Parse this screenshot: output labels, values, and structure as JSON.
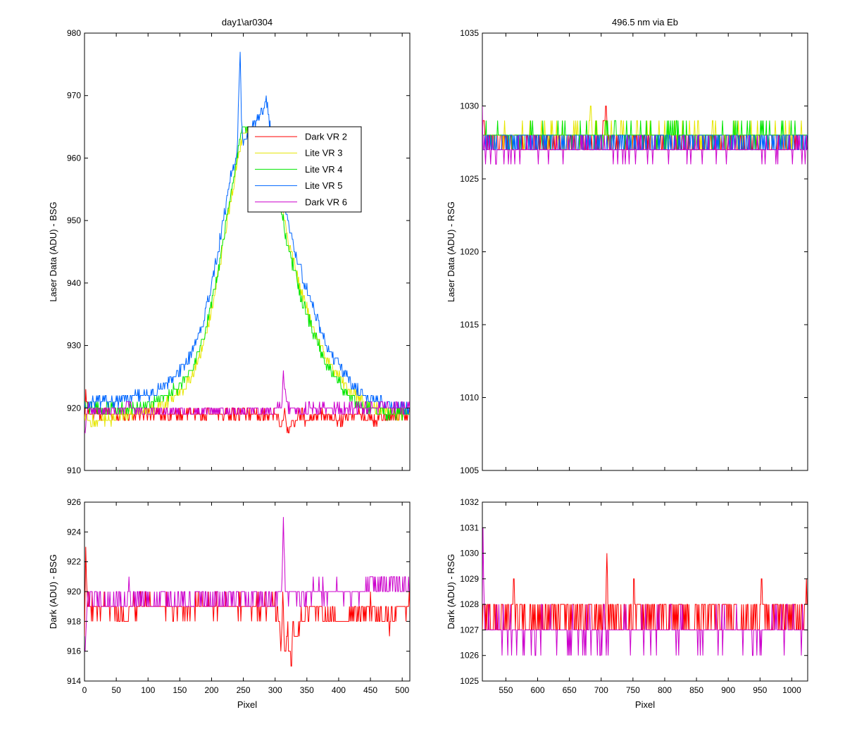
{
  "chart_data": [
    {
      "id": "top-left",
      "type": "line",
      "title": "day1\\ar0304",
      "xlabel": "",
      "ylabel": "Laser Data (ADU) - BSG",
      "xlim": [
        0,
        512
      ],
      "ylim": [
        910,
        980
      ],
      "xticks": [
        0,
        50,
        100,
        150,
        200,
        250,
        300,
        350,
        400,
        450,
        500
      ],
      "yticks": [
        910,
        920,
        930,
        940,
        950,
        960,
        970,
        980
      ],
      "show_xticklabels": false,
      "legend": {
        "position": "upper-center",
        "entries": [
          "Dark VR 2",
          "Lite VR 3",
          "Lite VR 4",
          "Lite VR 5",
          "Dark VR 6"
        ]
      },
      "series": [
        {
          "name": "Dark VR 2",
          "color": "#ff0000",
          "x": [
            0,
            2,
            5,
            10,
            20,
            40,
            60,
            80,
            100,
            150,
            200,
            250,
            300,
            305,
            310,
            315,
            320,
            325,
            330,
            340,
            350,
            370,
            400,
            430,
            460,
            490,
            512
          ],
          "y": [
            917,
            922,
            920,
            919,
            919,
            919,
            919,
            919,
            919,
            919,
            919,
            919,
            919,
            918,
            917,
            920,
            916,
            917,
            918,
            919,
            918,
            919,
            918,
            919,
            918,
            919,
            919
          ]
        },
        {
          "name": "Lite VR 3",
          "color": "#e6e600",
          "x": [
            0,
            10,
            30,
            50,
            70,
            90,
            110,
            130,
            150,
            170,
            190,
            210,
            230,
            245,
            250,
            290,
            300,
            320,
            340,
            360,
            380,
            400,
            420,
            440,
            460,
            480,
            500,
            512
          ],
          "y": [
            919,
            918,
            918,
            918.5,
            919,
            919.5,
            920,
            921,
            922.5,
            925,
            931,
            941,
            953,
            962,
            964,
            963,
            958,
            947,
            939,
            933,
            928,
            925,
            922.5,
            921,
            920,
            919.5,
            919,
            919
          ]
        },
        {
          "name": "Lite VR 4",
          "color": "#00e600",
          "x": [
            0,
            10,
            30,
            50,
            70,
            90,
            110,
            130,
            150,
            170,
            190,
            210,
            230,
            245,
            250,
            290,
            300,
            320,
            340,
            360,
            380,
            400,
            420,
            440,
            460,
            480,
            500,
            512
          ],
          "y": [
            921,
            920,
            920,
            920,
            920,
            920.5,
            921,
            922,
            923.5,
            926,
            932,
            942,
            954,
            963,
            965,
            964,
            957,
            946,
            938,
            932,
            927,
            924,
            921.5,
            920,
            919.5,
            919,
            919,
            919
          ]
        },
        {
          "name": "Lite VR 5",
          "color": "#0066ff",
          "x": [
            0,
            10,
            30,
            50,
            70,
            90,
            110,
            130,
            150,
            170,
            190,
            210,
            230,
            240,
            245,
            247,
            250,
            288,
            290,
            300,
            320,
            340,
            360,
            380,
            400,
            420,
            440,
            460,
            480,
            500,
            512
          ],
          "y": [
            920,
            921,
            921,
            921,
            921.5,
            922,
            922.5,
            924,
            926,
            929,
            935,
            945,
            957,
            961,
            977,
            966,
            962,
            969,
            966,
            960,
            950,
            942,
            936,
            930,
            927,
            924,
            922,
            921,
            920.5,
            920,
            920
          ]
        },
        {
          "name": "Dark VR 6",
          "color": "#cc00cc",
          "x": [
            0,
            2,
            5,
            10,
            20,
            40,
            60,
            70,
            80,
            100,
            150,
            200,
            250,
            300,
            310,
            313,
            320,
            340,
            360,
            400,
            450,
            470,
            500,
            512
          ],
          "y": [
            916,
            917,
            920,
            919.5,
            919.5,
            919.5,
            919.5,
            921,
            919.5,
            919.5,
            919.5,
            919.5,
            919.5,
            919.5,
            920,
            925,
            920,
            919.5,
            920,
            920,
            920,
            920.5,
            920,
            920
          ]
        }
      ]
    },
    {
      "id": "top-right",
      "type": "line",
      "title": "496.5 nm via Eb",
      "xlabel": "",
      "ylabel": "Laser Data (ADU) - RSG",
      "xlim": [
        513,
        1025
      ],
      "ylim": [
        1005,
        1035
      ],
      "xticks": [
        550,
        600,
        650,
        700,
        750,
        800,
        850,
        900,
        950,
        1000
      ],
      "yticks": [
        1005,
        1010,
        1015,
        1020,
        1025,
        1030,
        1035
      ],
      "show_xticklabels": false,
      "series": [
        {
          "name": "Dark VR 2",
          "color": "#ff0000",
          "x": [
            513,
            515,
            520,
            600,
            700,
            708,
            710,
            800,
            900,
            1000,
            1025
          ],
          "y": [
            1028,
            1029,
            1027.5,
            1027.5,
            1027.5,
            1030,
            1027.5,
            1027.5,
            1027.5,
            1027.5,
            1027.5
          ]
        },
        {
          "name": "Lite VR 3",
          "color": "#e6e600",
          "x": [
            513,
            600,
            680,
            683,
            686,
            800,
            900,
            1000,
            1025
          ],
          "y": [
            1028,
            1028,
            1028,
            1030,
            1028,
            1028,
            1028,
            1028,
            1028
          ]
        },
        {
          "name": "Lite VR 4",
          "color": "#00e600",
          "x": [
            513,
            600,
            700,
            800,
            900,
            1000,
            1025
          ],
          "y": [
            1028,
            1028,
            1028,
            1028,
            1028,
            1028,
            1028
          ]
        },
        {
          "name": "Lite VR 5",
          "color": "#0066ff",
          "x": [
            513,
            600,
            700,
            800,
            900,
            1000,
            1025
          ],
          "y": [
            1027.5,
            1027.5,
            1027.5,
            1027.5,
            1027.5,
            1027.5,
            1027.5
          ]
        },
        {
          "name": "Dark VR 6",
          "color": "#cc00cc",
          "x": [
            513,
            514,
            520,
            600,
            700,
            800,
            900,
            1000,
            1025
          ],
          "y": [
            1030.5,
            1027,
            1027,
            1027,
            1027,
            1027,
            1027,
            1027,
            1027
          ]
        }
      ]
    },
    {
      "id": "bottom-left",
      "type": "line",
      "title": "",
      "xlabel": "Pixel",
      "ylabel": "Dark (ADU) - BSG",
      "xlim": [
        0,
        512
      ],
      "ylim": [
        914,
        926
      ],
      "xticks": [
        0,
        50,
        100,
        150,
        200,
        250,
        300,
        350,
        400,
        450,
        500
      ],
      "yticks": [
        914,
        916,
        918,
        920,
        922,
        924,
        926
      ],
      "show_xticklabels": true,
      "series": [
        {
          "name": "Dark VR 2",
          "color": "#ff0000",
          "x": [
            0,
            2,
            4,
            8,
            15,
            40,
            69,
            70,
            71,
            100,
            150,
            200,
            250,
            300,
            305,
            310,
            312,
            315,
            320,
            325,
            328,
            330,
            340,
            360,
            400,
            450,
            480,
            500,
            512
          ],
          "y": [
            917,
            923,
            920,
            919,
            919,
            919,
            918,
            919,
            919,
            919,
            919,
            919,
            919,
            919,
            918,
            916,
            920,
            916,
            917,
            915,
            918,
            917,
            918,
            919,
            918,
            919,
            918,
            919,
            919
          ]
        },
        {
          "name": "Dark VR 6",
          "color": "#cc00cc",
          "x": [
            0,
            2,
            5,
            10,
            50,
            69,
            70,
            71,
            100,
            150,
            200,
            250,
            300,
            310,
            313,
            316,
            320,
            340,
            360,
            400,
            440,
            450,
            460,
            480,
            500,
            512
          ],
          "y": [
            916,
            917,
            920,
            919.5,
            919.5,
            919.5,
            921,
            919.5,
            919.5,
            919.5,
            919.5,
            919.5,
            919.5,
            920,
            925,
            920,
            920,
            919.5,
            920,
            920,
            920,
            920.5,
            920.5,
            920.5,
            920.5,
            920
          ]
        }
      ]
    },
    {
      "id": "bottom-right",
      "type": "line",
      "title": "",
      "xlabel": "Pixel",
      "ylabel": "Dark (ADU) - RSG",
      "xlim": [
        513,
        1025
      ],
      "ylim": [
        1025,
        1032
      ],
      "xticks": [
        550,
        600,
        650,
        700,
        750,
        800,
        850,
        900,
        950,
        1000
      ],
      "yticks": [
        1025,
        1026,
        1027,
        1028,
        1029,
        1030,
        1031,
        1032
      ],
      "show_xticklabels": true,
      "series": [
        {
          "name": "Dark VR 2",
          "color": "#ff0000",
          "x": [
            513,
            560,
            562,
            564,
            600,
            700,
            707,
            709,
            711,
            750,
            752,
            754,
            800,
            900,
            905,
            907,
            950,
            953,
            956,
            1000,
            1020,
            1022,
            1025
          ],
          "y": [
            1027.5,
            1027.5,
            1029,
            1027.5,
            1027.5,
            1027.5,
            1027.5,
            1030,
            1027.5,
            1027.5,
            1029,
            1027.5,
            1027.5,
            1027.5,
            1028,
            1027.5,
            1027.5,
            1029,
            1027.5,
            1027.5,
            1027.5,
            1029,
            1027.5
          ]
        },
        {
          "name": "Dark VR 6",
          "color": "#cc00cc",
          "x": [
            513,
            514,
            516,
            600,
            700,
            800,
            900,
            1000,
            1025
          ],
          "y": [
            1029,
            1030.5,
            1027,
            1027,
            1027,
            1027,
            1027,
            1027,
            1027
          ]
        }
      ]
    }
  ]
}
